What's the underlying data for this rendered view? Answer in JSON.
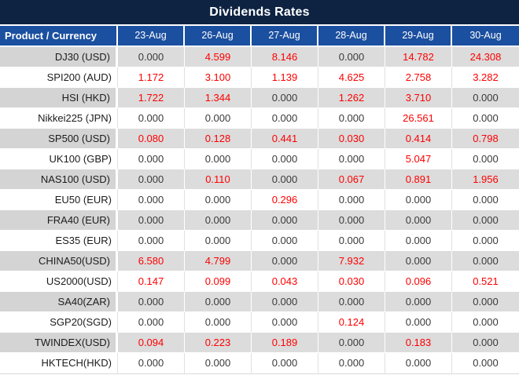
{
  "title": "Dividends Rates",
  "columns": [
    "Product / Currency",
    "23-Aug",
    "26-Aug",
    "27-Aug",
    "28-Aug",
    "29-Aug",
    "30-Aug"
  ],
  "rows": [
    {
      "product": "DJ30 (USD)",
      "values": [
        "0.000",
        "4.599",
        "8.146",
        "0.000",
        "14.782",
        "24.308"
      ]
    },
    {
      "product": "SPI200 (AUD)",
      "values": [
        "1.172",
        "3.100",
        "1.139",
        "4.625",
        "2.758",
        "3.282"
      ]
    },
    {
      "product": "HSI (HKD)",
      "values": [
        "1.722",
        "1.344",
        "0.000",
        "1.262",
        "3.710",
        "0.000"
      ]
    },
    {
      "product": "Nikkei225 (JPN)",
      "values": [
        "0.000",
        "0.000",
        "0.000",
        "0.000",
        "26.561",
        "0.000"
      ]
    },
    {
      "product": "SP500 (USD)",
      "values": [
        "0.080",
        "0.128",
        "0.441",
        "0.030",
        "0.414",
        "0.798"
      ]
    },
    {
      "product": "UK100 (GBP)",
      "values": [
        "0.000",
        "0.000",
        "0.000",
        "0.000",
        "5.047",
        "0.000"
      ]
    },
    {
      "product": "NAS100 (USD)",
      "values": [
        "0.000",
        "0.110",
        "0.000",
        "0.067",
        "0.891",
        "1.956"
      ]
    },
    {
      "product": "EU50 (EUR)",
      "values": [
        "0.000",
        "0.000",
        "0.296",
        "0.000",
        "0.000",
        "0.000"
      ]
    },
    {
      "product": "FRA40 (EUR)",
      "values": [
        "0.000",
        "0.000",
        "0.000",
        "0.000",
        "0.000",
        "0.000"
      ]
    },
    {
      "product": "ES35 (EUR)",
      "values": [
        "0.000",
        "0.000",
        "0.000",
        "0.000",
        "0.000",
        "0.000"
      ]
    },
    {
      "product": "CHINA50(USD)",
      "values": [
        "6.580",
        "4.799",
        "0.000",
        "7.932",
        "0.000",
        "0.000"
      ]
    },
    {
      "product": "US2000(USD)",
      "values": [
        "0.147",
        "0.099",
        "0.043",
        "0.030",
        "0.096",
        "0.521"
      ]
    },
    {
      "product": "SA40(ZAR)",
      "values": [
        "0.000",
        "0.000",
        "0.000",
        "0.000",
        "0.000",
        "0.000"
      ]
    },
    {
      "product": "SGP20(SGD)",
      "values": [
        "0.000",
        "0.000",
        "0.000",
        "0.124",
        "0.000",
        "0.000"
      ]
    },
    {
      "product": "TWINDEX(USD)",
      "values": [
        "0.094",
        "0.223",
        "0.189",
        "0.000",
        "0.183",
        "0.000"
      ]
    },
    {
      "product": "HKTECH(HKD)",
      "values": [
        "0.000",
        "0.000",
        "0.000",
        "0.000",
        "0.000",
        "0.000"
      ]
    }
  ],
  "colors": {
    "title_bg": "#0e2342",
    "header_bg": "#1b4f9f",
    "band_gray": "#dcdcdc",
    "band_label_gray": "#d4d4d4",
    "value_red": "#fe0000",
    "value_black": "#3a3a3a"
  }
}
